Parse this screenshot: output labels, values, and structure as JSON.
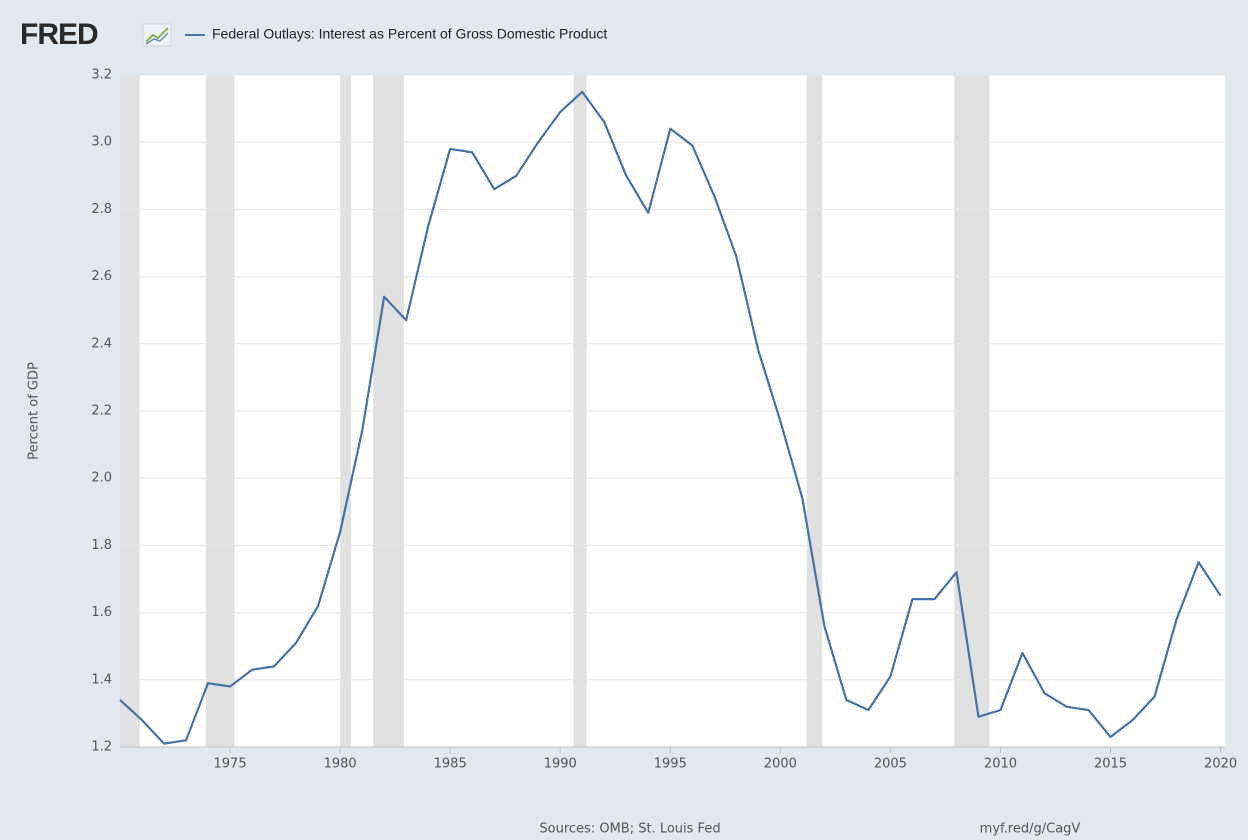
{
  "chart_data": {
    "type": "line",
    "logo": "FRED",
    "y_label": "Percent of GDP",
    "source": "Sources: OMB; St. Louis Fed",
    "link": "myf.red/g/CagV",
    "x": [
      1970,
      1971,
      1972,
      1973,
      1974,
      1975,
      1976,
      1977,
      1978,
      1979,
      1980,
      1981,
      1982,
      1983,
      1984,
      1985,
      1986,
      1987,
      1988,
      1989,
      1990,
      1991,
      1992,
      1993,
      1994,
      1995,
      1996,
      1997,
      1998,
      1999,
      2000,
      2001,
      2002,
      2003,
      2004,
      2005,
      2006,
      2007,
      2008,
      2009,
      2010,
      2011,
      2012,
      2013,
      2014,
      2015,
      2016,
      2017,
      2018,
      2019,
      2020
    ],
    "series": [
      {
        "name": "Federal Outlays: Interest as Percent of Gross Domestic Product",
        "color": "#4572a7",
        "values": [
          1.34,
          1.28,
          1.21,
          1.22,
          1.39,
          1.38,
          1.43,
          1.44,
          1.51,
          1.62,
          1.84,
          2.14,
          2.54,
          2.47,
          2.75,
          2.98,
          2.97,
          2.86,
          2.9,
          3.0,
          3.09,
          3.15,
          3.06,
          2.9,
          2.79,
          3.04,
          2.99,
          2.84,
          2.66,
          2.38,
          2.17,
          1.94,
          1.56,
          1.34,
          1.31,
          1.41,
          1.64,
          1.64,
          1.72,
          1.29,
          1.31,
          1.48,
          1.36,
          1.32,
          1.31,
          1.23,
          1.28,
          1.35,
          1.58,
          1.75,
          1.65
        ]
      }
    ],
    "recessions": [
      [
        1970,
        1970.9
      ],
      [
        1973.9,
        1975.2
      ],
      [
        1980,
        1980.5
      ],
      [
        1981.5,
        1982.9
      ],
      [
        1990.6,
        1991.2
      ],
      [
        2001.2,
        2001.9
      ],
      [
        2007.9,
        2009.5
      ]
    ],
    "recession_color": "#e1e1e1",
    "xlim": [
      1970,
      2020.2
    ],
    "ylim": [
      1.2,
      3.2
    ],
    "xticks": [
      1975,
      1980,
      1985,
      1990,
      1995,
      2000,
      2005,
      2010,
      2015,
      2020
    ],
    "yticks": [
      1.2,
      1.4,
      1.6,
      1.8,
      {
        "value": 2,
        "label": "2.0"
      },
      2.2,
      2.4,
      2.6,
      2.8,
      {
        "value": 3,
        "label": "3.0"
      },
      3.2
    ],
    "grid": true
  }
}
